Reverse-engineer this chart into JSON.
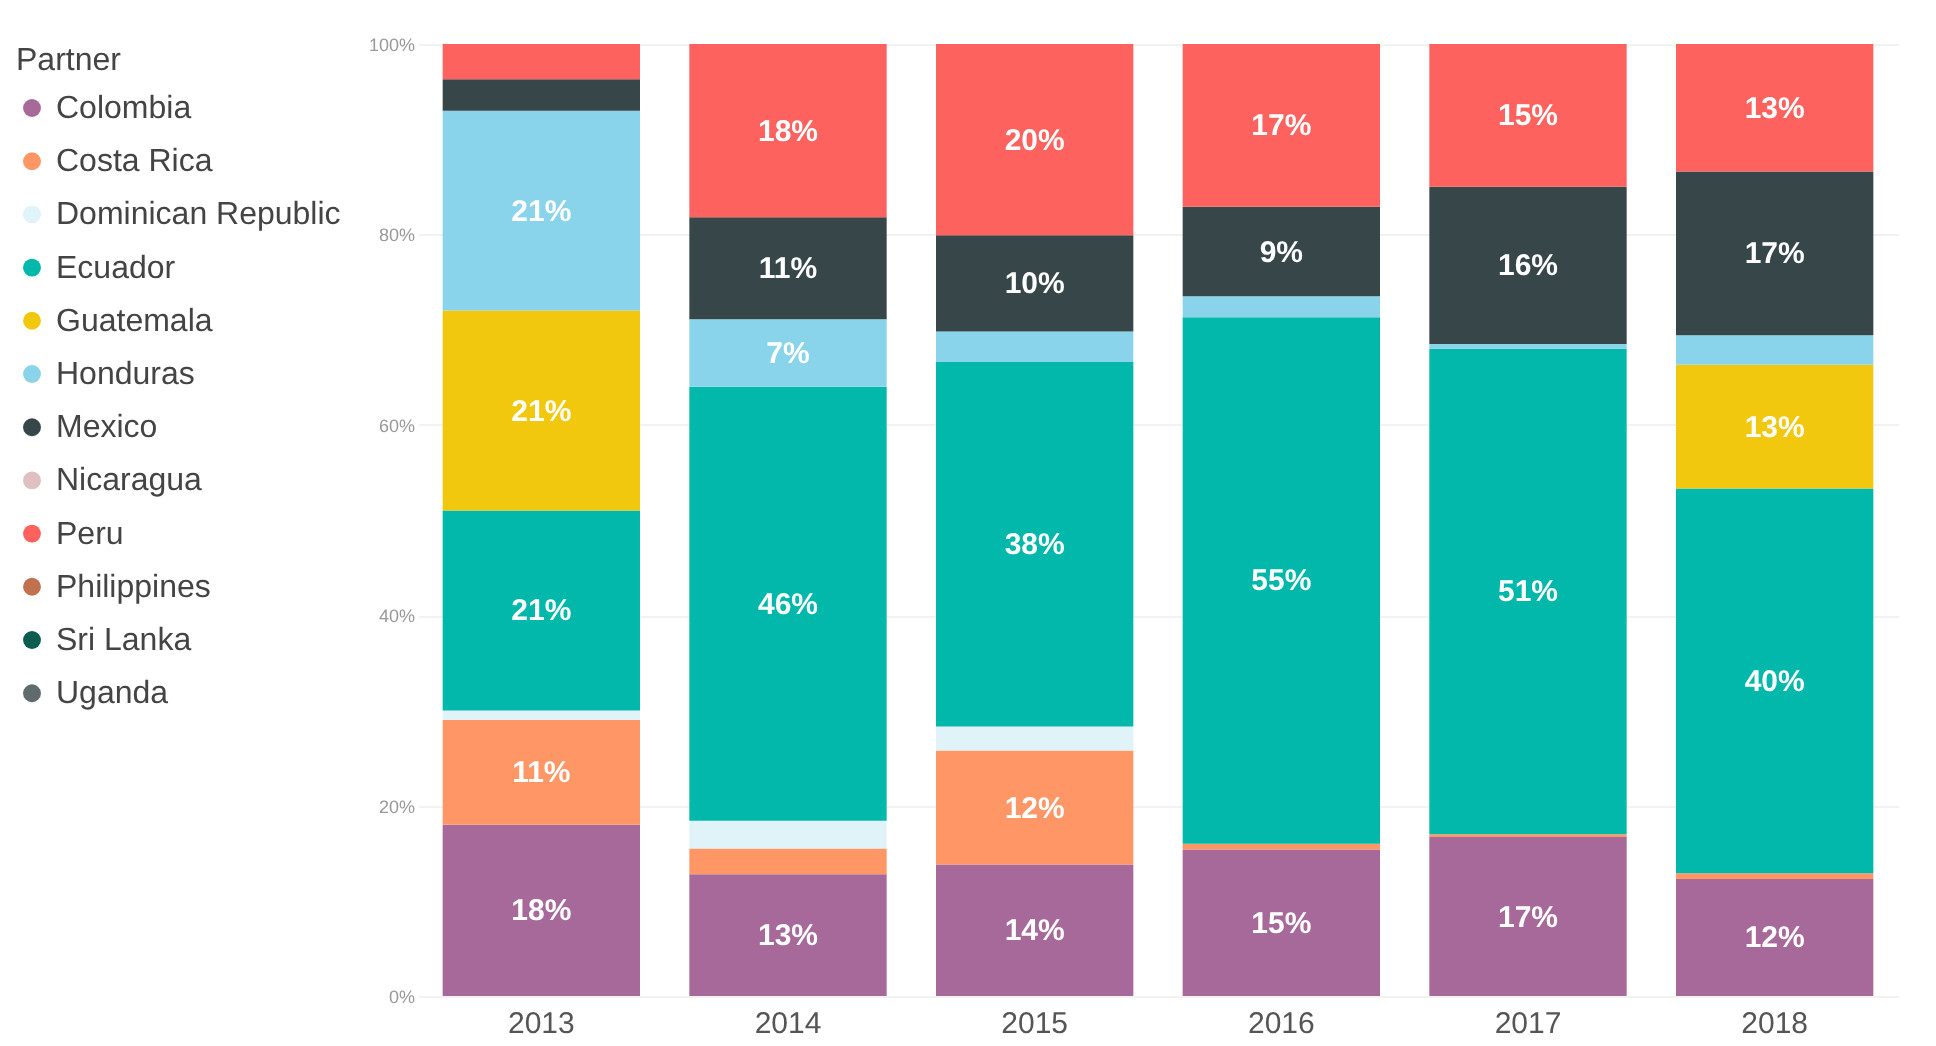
{
  "chart_data": {
    "type": "bar",
    "stacked": true,
    "legend": "left",
    "legend_title": "Partner",
    "grid": "y",
    "categories": [
      "2013",
      "2014",
      "2015",
      "2016",
      "2017",
      "2018"
    ],
    "ylim": [
      0,
      100
    ],
    "yticks": [
      {
        "value": 0,
        "label": "0%"
      },
      {
        "value": 20,
        "label": "20%"
      },
      {
        "value": 40,
        "label": "40%"
      },
      {
        "value": 60,
        "label": "60%"
      },
      {
        "value": 80,
        "label": "80%"
      },
      {
        "value": 100,
        "label": "100%"
      }
    ],
    "series": [
      {
        "name": "Colombia",
        "color": "#a66999",
        "values": [
          18,
          12.8,
          13.8,
          15.4,
          16.7,
          12.3
        ],
        "value_labels": [
          "18%",
          "13%",
          "14%",
          "15%",
          "17%",
          "12%"
        ]
      },
      {
        "name": "Costa Rica",
        "color": "#fe9666",
        "values": [
          11,
          2.7,
          12,
          0.6,
          0.3,
          0.6
        ],
        "value_labels": [
          "11%",
          null,
          "12%",
          null,
          null,
          null
        ]
      },
      {
        "name": "Dominican Republic",
        "color": "#dff3f8",
        "values": [
          1,
          2.9,
          2.5,
          0,
          0,
          0
        ],
        "value_labels": [
          null,
          null,
          null,
          null,
          null,
          null
        ]
      },
      {
        "name": "Ecuador",
        "color": "#01b8aa",
        "values": [
          21,
          45.6,
          38.3,
          55.3,
          51,
          40.4
        ],
        "value_labels": [
          "21%",
          "46%",
          "38%",
          "55%",
          "51%",
          "40%"
        ]
      },
      {
        "name": "Guatemala",
        "color": "#f2c80f",
        "values": [
          21,
          0,
          0,
          0,
          0,
          13
        ],
        "value_labels": [
          "21%",
          null,
          null,
          null,
          null,
          "13%"
        ]
      },
      {
        "name": "Honduras",
        "color": "#8ad4eb",
        "values": [
          21,
          7.1,
          3.2,
          2.2,
          0.5,
          3.1
        ],
        "value_labels": [
          "21%",
          "7%",
          null,
          null,
          null,
          null
        ]
      },
      {
        "name": "Mexico",
        "color": "#374649",
        "values": [
          3.3,
          10.7,
          10.1,
          9.4,
          16.5,
          17.2
        ],
        "value_labels": [
          null,
          "11%",
          "10%",
          "9%",
          "16%",
          "17%"
        ]
      },
      {
        "name": "Nicaragua",
        "color": "#dfbfbf",
        "values": [
          0,
          0,
          0,
          0,
          0,
          0
        ],
        "value_labels": [
          null,
          null,
          null,
          null,
          null,
          null
        ]
      },
      {
        "name": "Peru",
        "color": "#fd625e",
        "values": [
          3.7,
          18.2,
          20.1,
          17.1,
          15,
          13.4
        ],
        "value_labels": [
          null,
          "18%",
          "20%",
          "17%",
          "15%",
          "13%"
        ]
      },
      {
        "name": "Philippines",
        "color": "#c0714f",
        "values": [
          0,
          0,
          0,
          0,
          0,
          0
        ],
        "value_labels": [
          null,
          null,
          null,
          null,
          null,
          null
        ]
      },
      {
        "name": "Sri Lanka",
        "color": "#0d5c50",
        "values": [
          0,
          0,
          0,
          0,
          0,
          0
        ],
        "value_labels": [
          null,
          null,
          null,
          null,
          null,
          null
        ]
      },
      {
        "name": "Uganda",
        "color": "#5f6b6d",
        "values": [
          0,
          0,
          0,
          0,
          0,
          0
        ],
        "value_labels": [
          null,
          null,
          null,
          null,
          null,
          null
        ]
      }
    ]
  }
}
